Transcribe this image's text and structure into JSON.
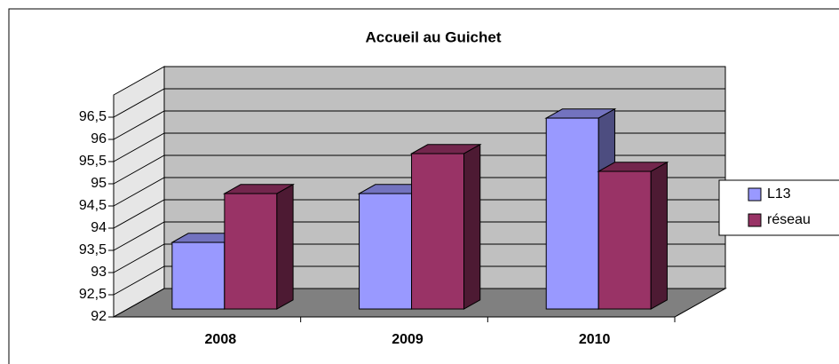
{
  "chart_data": {
    "type": "bar",
    "title": "Accueil au Guichet",
    "categories": [
      "2008",
      "2009",
      "2010"
    ],
    "series": [
      {
        "name": "L13",
        "color": "#9999ff",
        "values": [
          93.5,
          94.6,
          96.3
        ]
      },
      {
        "name": "réseau",
        "color": "#993366",
        "values": [
          94.6,
          95.5,
          95.1
        ]
      }
    ],
    "ylim": [
      92,
      97
    ],
    "yticks": [
      92,
      {
        "value": 92.5,
        "label": "92,5"
      },
      93,
      {
        "value": 93.5,
        "label": "93,5"
      },
      94,
      {
        "value": 94.5,
        "label": "94,5"
      },
      95,
      {
        "value": 95.5,
        "label": "95,5"
      },
      96,
      {
        "value": 96.5,
        "label": "96,5"
      }
    ],
    "grid": true,
    "legend": "right"
  }
}
